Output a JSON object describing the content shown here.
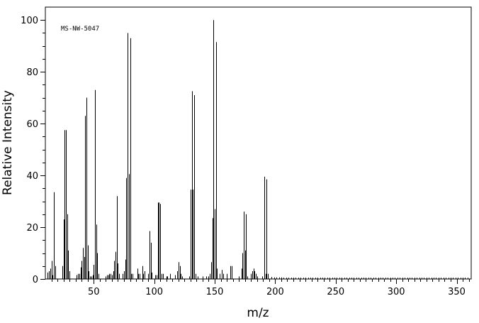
{
  "chart_data": {
    "type": "bar",
    "title": "",
    "annotation": "MS-NW-5047",
    "xlabel": "m/z",
    "ylabel": "Relative Intensity",
    "xlim": [
      10,
      362
    ],
    "ylim": [
      0,
      105
    ],
    "x_ticks": [
      50,
      100,
      150,
      200,
      250,
      300,
      350
    ],
    "y_ticks": [
      0,
      20,
      40,
      60,
      80,
      100
    ],
    "grid": false,
    "legend": "none",
    "colors": {
      "bars": "#000000",
      "axes": "#000000",
      "background": "#ffffff"
    },
    "peaks": [
      [
        12,
        2.5
      ],
      [
        13,
        3
      ],
      [
        14,
        4
      ],
      [
        15,
        7
      ],
      [
        16,
        1.5
      ],
      [
        17,
        33.5
      ],
      [
        18,
        5
      ],
      [
        24,
        5
      ],
      [
        25,
        23
      ],
      [
        26,
        57.5
      ],
      [
        27,
        57.5
      ],
      [
        28,
        25
      ],
      [
        29,
        11
      ],
      [
        30,
        3
      ],
      [
        36,
        1.5
      ],
      [
        37,
        2
      ],
      [
        38,
        2
      ],
      [
        39,
        4.5
      ],
      [
        40,
        7
      ],
      [
        41,
        12
      ],
      [
        42,
        8.5
      ],
      [
        43,
        63
      ],
      [
        44,
        70
      ],
      [
        45,
        13
      ],
      [
        46,
        3
      ],
      [
        47,
        1
      ],
      [
        48,
        1
      ],
      [
        49,
        1.5
      ],
      [
        50,
        5.5
      ],
      [
        51,
        73
      ],
      [
        52,
        21
      ],
      [
        53,
        10
      ],
      [
        54,
        2
      ],
      [
        60,
        1
      ],
      [
        61,
        1.5
      ],
      [
        62,
        1.5
      ],
      [
        63,
        2
      ],
      [
        64,
        2
      ],
      [
        65,
        1.5
      ],
      [
        66,
        3
      ],
      [
        67,
        7
      ],
      [
        68,
        10.5
      ],
      [
        69,
        32
      ],
      [
        70,
        6
      ],
      [
        71,
        2
      ],
      [
        74,
        2
      ],
      [
        75,
        3
      ],
      [
        76,
        7.5
      ],
      [
        77,
        39
      ],
      [
        78,
        95
      ],
      [
        79,
        40.5
      ],
      [
        80,
        93
      ],
      [
        81,
        2
      ],
      [
        82,
        2
      ],
      [
        86,
        4
      ],
      [
        87,
        2
      ],
      [
        88,
        2
      ],
      [
        90,
        5
      ],
      [
        91,
        2
      ],
      [
        92,
        3
      ],
      [
        95,
        2
      ],
      [
        96,
        18.5
      ],
      [
        97,
        14
      ],
      [
        98,
        2.5
      ],
      [
        101,
        1.5
      ],
      [
        102,
        1.5
      ],
      [
        103,
        29.5
      ],
      [
        104,
        29.5
      ],
      [
        105,
        29
      ],
      [
        106,
        2
      ],
      [
        107,
        2
      ],
      [
        110,
        1
      ],
      [
        111,
        1
      ],
      [
        113,
        2
      ],
      [
        117,
        1.5
      ],
      [
        119,
        3
      ],
      [
        120,
        6.5
      ],
      [
        121,
        5
      ],
      [
        122,
        2
      ],
      [
        123,
        1
      ],
      [
        129,
        1
      ],
      [
        130,
        34.5
      ],
      [
        131,
        72.5
      ],
      [
        132,
        34.5
      ],
      [
        133,
        71
      ],
      [
        134,
        2
      ],
      [
        136,
        1
      ],
      [
        140,
        1
      ],
      [
        143,
        1
      ],
      [
        145,
        1
      ],
      [
        146,
        2
      ],
      [
        147,
        6.5
      ],
      [
        148,
        23.5
      ],
      [
        149,
        100
      ],
      [
        150,
        27
      ],
      [
        151,
        91.5
      ],
      [
        152,
        4
      ],
      [
        154,
        2
      ],
      [
        156,
        3.5
      ],
      [
        157,
        2
      ],
      [
        160,
        2
      ],
      [
        163,
        5
      ],
      [
        164,
        5
      ],
      [
        170,
        1
      ],
      [
        172,
        4
      ],
      [
        173,
        10
      ],
      [
        174,
        26
      ],
      [
        175,
        11
      ],
      [
        176,
        25
      ],
      [
        177,
        1
      ],
      [
        180,
        2
      ],
      [
        181,
        3
      ],
      [
        182,
        4
      ],
      [
        183,
        3
      ],
      [
        184,
        2
      ],
      [
        185,
        1
      ],
      [
        189,
        1
      ],
      [
        191,
        39.5
      ],
      [
        192,
        2
      ],
      [
        193,
        38.5
      ],
      [
        194,
        2
      ],
      [
        197,
        0.8
      ],
      [
        199,
        0.6
      ],
      [
        201,
        0.6
      ],
      [
        203,
        0.6
      ],
      [
        205,
        0.6
      ],
      [
        207,
        0.5
      ],
      [
        209,
        0.5
      ],
      [
        211,
        0.5
      ],
      [
        213,
        0.5
      ],
      [
        215,
        0.5
      ],
      [
        217,
        0.5
      ],
      [
        219,
        0.5
      ],
      [
        221,
        0.5
      ],
      [
        223,
        0.5
      ],
      [
        225,
        0.5
      ],
      [
        227,
        0.5
      ],
      [
        229,
        0.5
      ],
      [
        231,
        0.5
      ],
      [
        233,
        0.5
      ],
      [
        235,
        0.5
      ],
      [
        237,
        0.5
      ],
      [
        239,
        0.5
      ],
      [
        241,
        0.5
      ],
      [
        243,
        0.5
      ],
      [
        245,
        0.5
      ],
      [
        247,
        0.5
      ],
      [
        249,
        0.5
      ],
      [
        251,
        0.5
      ],
      [
        253,
        0.5
      ],
      [
        255,
        0.5
      ],
      [
        257,
        0.5
      ],
      [
        259,
        0.5
      ],
      [
        261,
        0.5
      ],
      [
        263,
        0.5
      ],
      [
        265,
        0.5
      ],
      [
        267,
        0.5
      ],
      [
        269,
        0.5
      ],
      [
        271,
        0.5
      ],
      [
        273,
        0.5
      ],
      [
        275,
        0.5
      ],
      [
        277,
        0.5
      ],
      [
        279,
        0.5
      ],
      [
        281,
        0.5
      ],
      [
        283,
        0.5
      ],
      [
        285,
        0.5
      ],
      [
        287,
        0.5
      ],
      [
        289,
        0.5
      ],
      [
        291,
        0.5
      ],
      [
        293,
        0.5
      ],
      [
        295,
        0.5
      ],
      [
        297,
        0.5
      ],
      [
        299,
        0.5
      ],
      [
        301,
        0.5
      ],
      [
        303,
        0.5
      ],
      [
        305,
        0.5
      ],
      [
        307,
        0.5
      ],
      [
        309,
        0.5
      ],
      [
        311,
        0.5
      ],
      [
        313,
        0.5
      ],
      [
        315,
        0.5
      ],
      [
        317,
        0.5
      ],
      [
        319,
        0.5
      ],
      [
        321,
        0.5
      ],
      [
        323,
        0.5
      ],
      [
        325,
        0.5
      ],
      [
        327,
        0.5
      ],
      [
        329,
        0.5
      ],
      [
        331,
        0.5
      ],
      [
        333,
        0.5
      ],
      [
        335,
        0.5
      ],
      [
        337,
        0.5
      ],
      [
        339,
        0.5
      ],
      [
        341,
        0.5
      ],
      [
        343,
        0.5
      ],
      [
        345,
        0.5
      ],
      [
        347,
        0.5
      ],
      [
        349,
        0.5
      ],
      [
        351,
        0.5
      ],
      [
        353,
        0.5
      ],
      [
        355,
        0.5
      ],
      [
        357,
        0.5
      ],
      [
        359,
        0.5
      ]
    ]
  }
}
